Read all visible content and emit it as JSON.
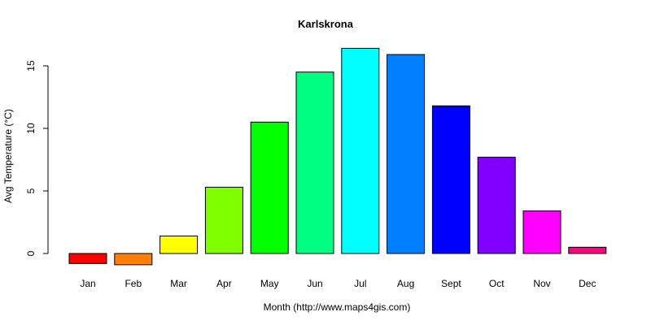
{
  "chart_data": {
    "type": "bar",
    "title": "Karlskrona",
    "xlabel": "Month (http://www.maps4gis.com)",
    "ylabel": "Avg Temperature (°C)",
    "categories": [
      "Jan",
      "Feb",
      "Mar",
      "Apr",
      "May",
      "Jun",
      "Jul",
      "Aug",
      "Sept",
      "Oct",
      "Nov",
      "Dec"
    ],
    "values": [
      -0.8,
      -0.9,
      1.4,
      5.3,
      10.5,
      14.5,
      16.4,
      15.9,
      11.8,
      7.7,
      3.4,
      0.5
    ],
    "colors": [
      "#FF0000",
      "#FF8000",
      "#FFFF00",
      "#80FF00",
      "#00FF00",
      "#00FF80",
      "#00FFFF",
      "#0080FF",
      "#0000FF",
      "#8000FF",
      "#FF00FF",
      "#FF0080"
    ],
    "yticks": [
      0,
      5,
      10,
      15
    ],
    "ylim": [
      -1,
      16.5
    ],
    "grid": false,
    "legend": null
  }
}
